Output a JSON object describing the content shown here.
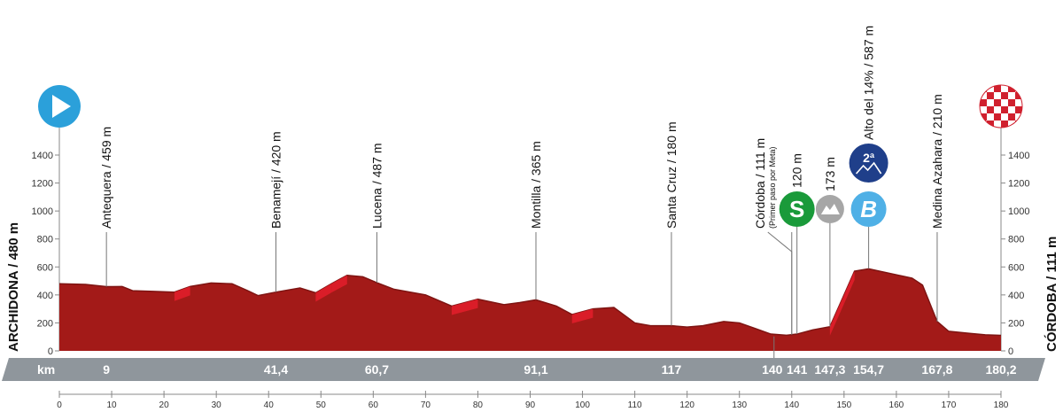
{
  "chart_data": {
    "type": "area",
    "start_label": "ARCHIDONA / 480 m",
    "finish_label": "CÓRDOBA / 111 m",
    "band_label": "km",
    "y_ticks": [
      "0",
      "200",
      "400",
      "600",
      "800",
      "1000",
      "1200",
      "1400"
    ],
    "x_ticks": [
      "0",
      "10",
      "20",
      "30",
      "40",
      "50",
      "60",
      "70",
      "80",
      "90",
      "100",
      "110",
      "120",
      "130",
      "140",
      "150",
      "160",
      "170",
      "180"
    ],
    "ylim": [
      0,
      1500
    ],
    "xlim": [
      0,
      180.2
    ],
    "profile": {
      "x": [
        0,
        5,
        9,
        12,
        14,
        18,
        22,
        25,
        29,
        33,
        36,
        38,
        41.4,
        46,
        49,
        52,
        55,
        58,
        60.7,
        64,
        70,
        75,
        80,
        85,
        88,
        91.1,
        95,
        98,
        102,
        106,
        110,
        113,
        117,
        120,
        123,
        127,
        130,
        133,
        136,
        139,
        141,
        144,
        147.3,
        150,
        152,
        154.7,
        158,
        163,
        165,
        167.8,
        170,
        174,
        177,
        180.2
      ],
      "y": [
        480,
        475,
        459,
        460,
        430,
        425,
        420,
        460,
        485,
        480,
        430,
        395,
        420,
        450,
        415,
        480,
        540,
        530,
        487,
        440,
        400,
        320,
        370,
        330,
        345,
        365,
        320,
        260,
        300,
        310,
        200,
        180,
        180,
        170,
        180,
        210,
        200,
        160,
        120,
        112,
        120,
        150,
        173,
        400,
        570,
        587,
        560,
        520,
        470,
        210,
        140,
        125,
        115,
        111
      ]
    },
    "waypoints": [
      {
        "km": "9",
        "label": "Antequera / 459 m",
        "x": 9
      },
      {
        "km": "41,4",
        "label": "Benamejí / 420 m",
        "x": 41.4
      },
      {
        "km": "60,7",
        "label": "Lucena / 487 m",
        "x": 60.7
      },
      {
        "km": "91,1",
        "label": "Montilla / 365 m",
        "x": 91.1
      },
      {
        "km": "117",
        "label": "Santa Cruz / 180 m",
        "x": 117
      },
      {
        "km": "140",
        "label": "Córdoba / 111 m",
        "sub": "(Primer paso por Meta)",
        "x": 140
      },
      {
        "km": "141",
        "label": "120 m",
        "x": 141,
        "badge": "S",
        "badge_color": "#1a9a3a"
      },
      {
        "km": "147,3",
        "label": "173 m",
        "x": 147.3,
        "badge": "C",
        "badge_color": "#a6a6a6"
      },
      {
        "km": "154,7",
        "label": "Alto del 14% / 587 m",
        "x": 154.7,
        "badge": "B",
        "badge_color": "#4fb0e6",
        "category": "2ª",
        "category_color": "#1f3f8a"
      },
      {
        "km": "167,8",
        "label": "Medina Azahara / 210 m",
        "x": 167.8
      },
      {
        "km": "180,2",
        "label": "",
        "x": 180.2
      }
    ],
    "colors": {
      "profile": "#a31a18",
      "highlight": "#e01e2a",
      "band": "#8f969c",
      "start_icon": "#2ba0da",
      "finish_check": "#d0202e"
    }
  }
}
